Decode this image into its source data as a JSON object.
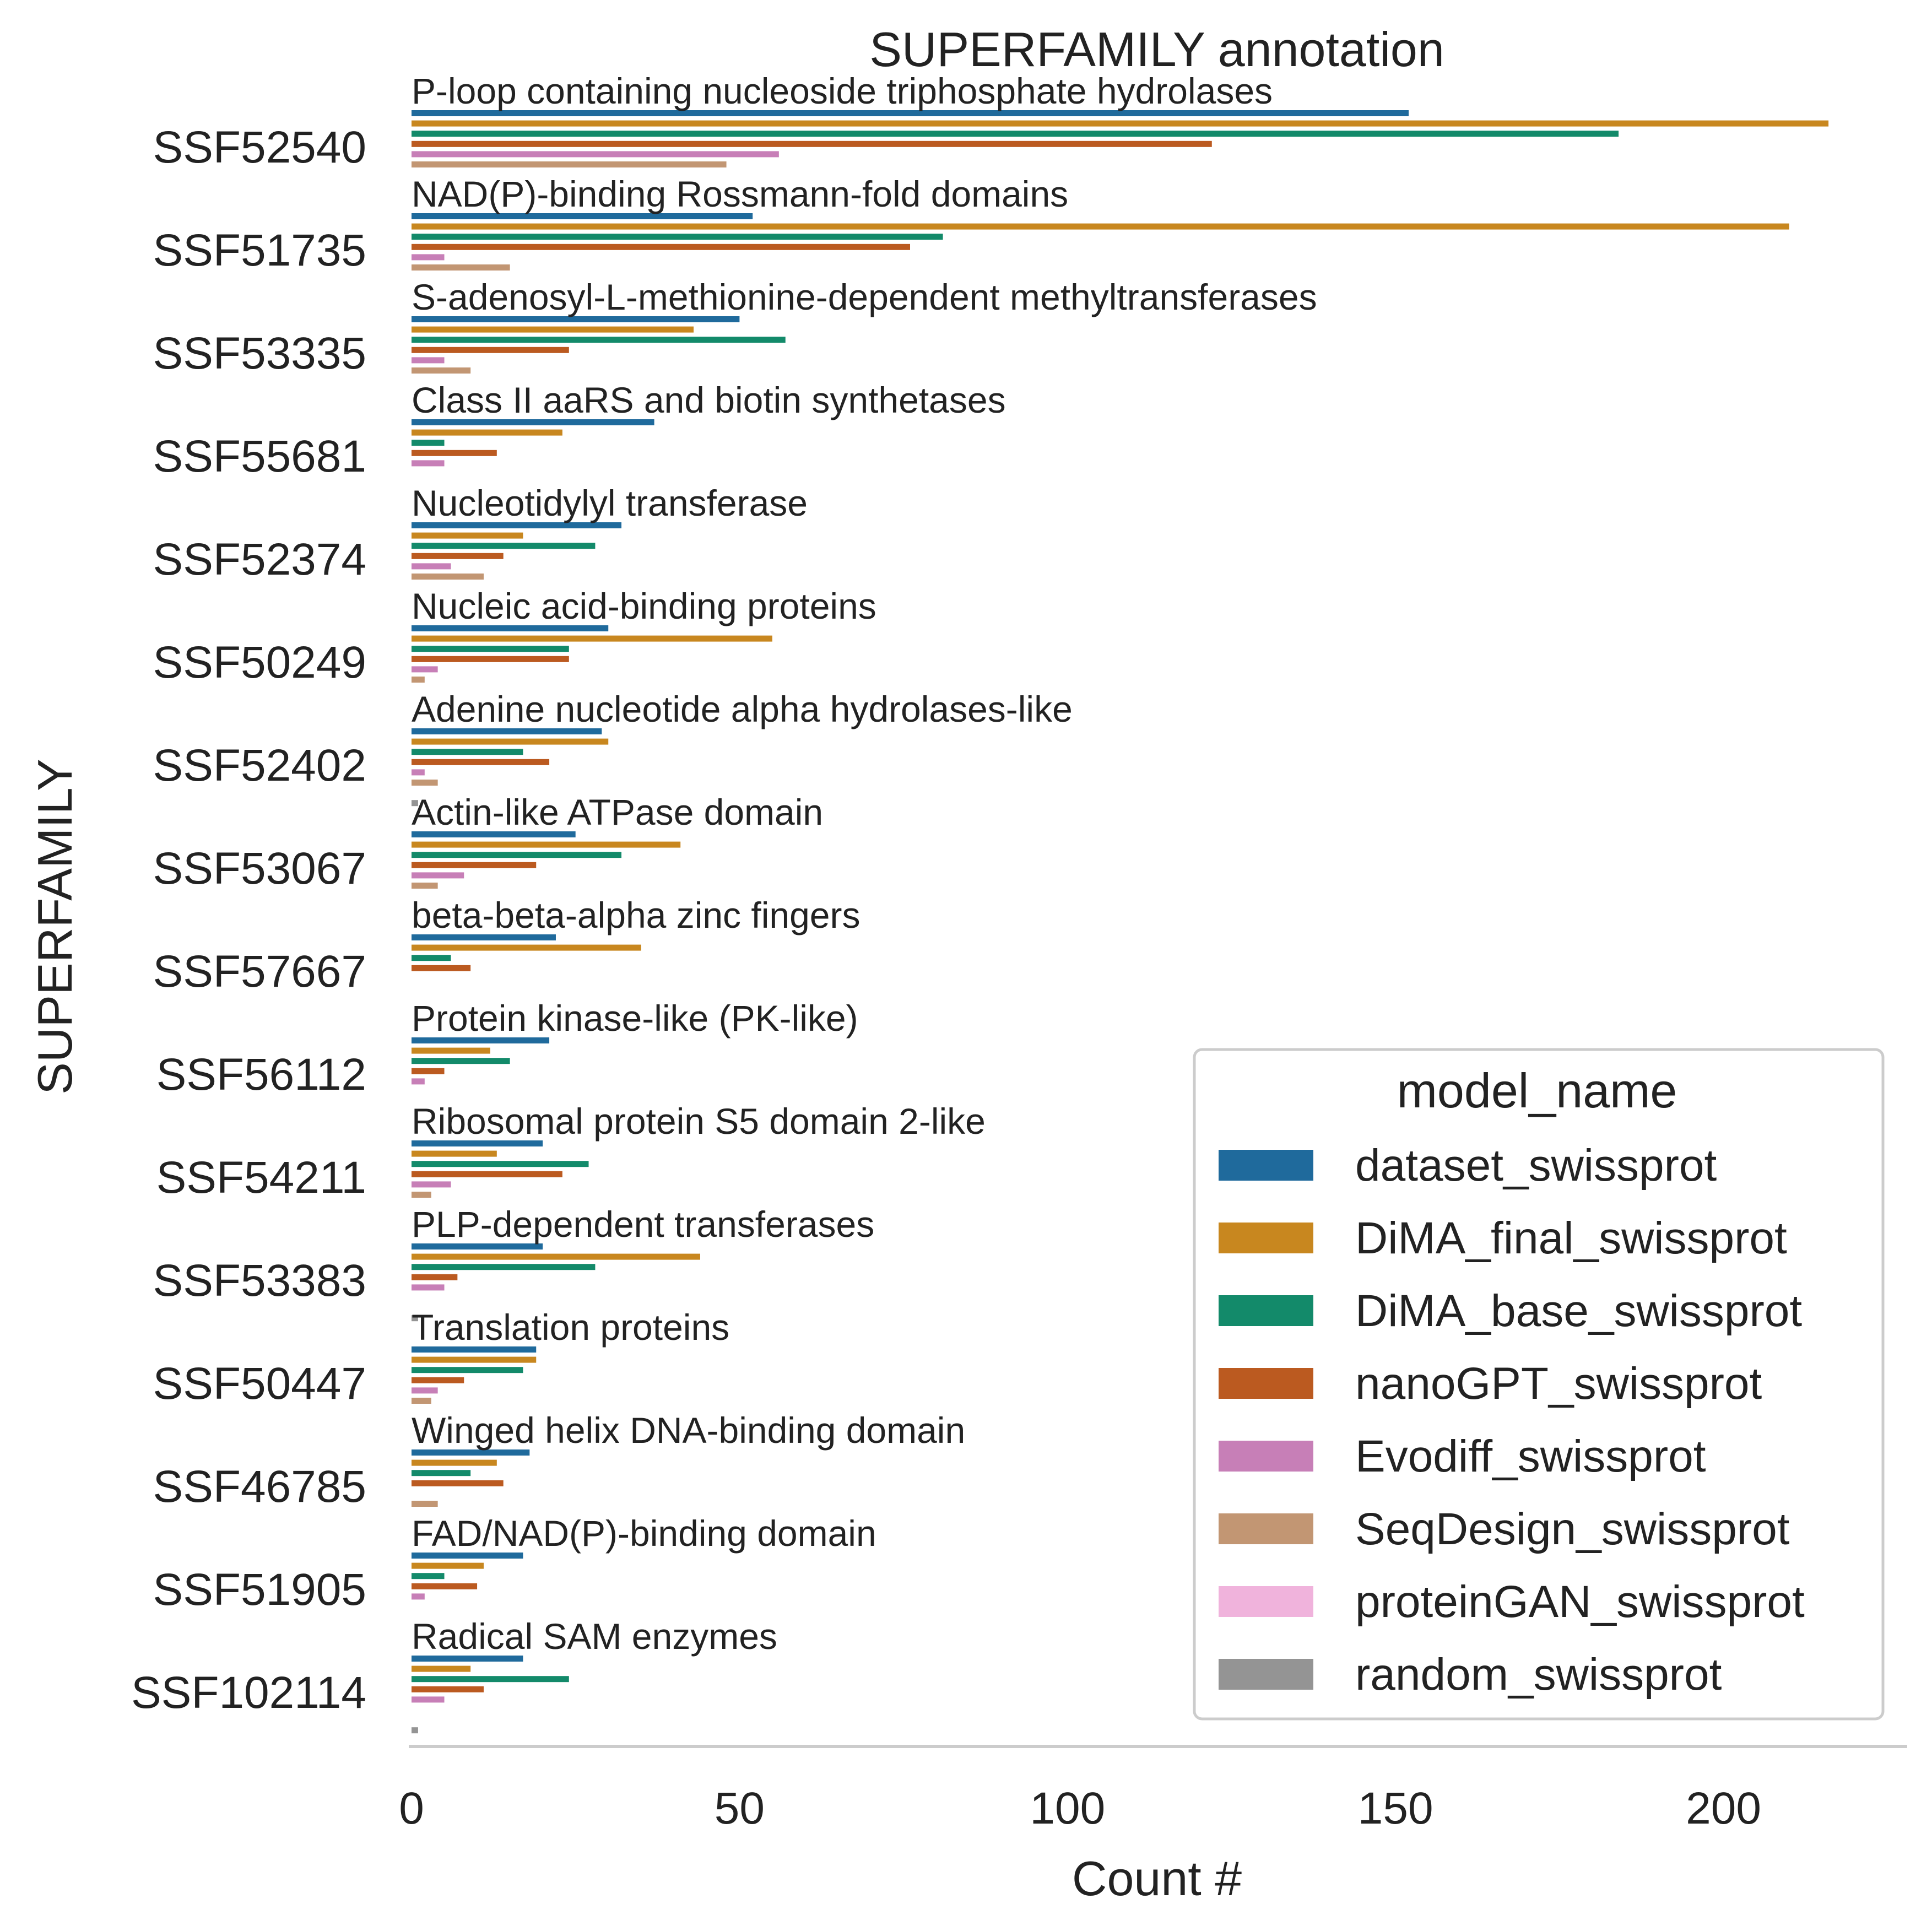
{
  "chart_data": {
    "type": "bar",
    "orientation": "horizontal",
    "title": "SUPERFAMILY annotation",
    "xlabel": "Count #",
    "ylabel": "SUPERFAMILY",
    "xlim": [
      0,
      228
    ],
    "xticks": [
      0,
      50,
      100,
      150,
      200
    ],
    "xtick_labels": [
      "0",
      "50",
      "100",
      "150",
      "200"
    ],
    "grid": false,
    "legend": {
      "title": "model_name",
      "position": "bottom-right"
    },
    "categories": [
      "SSF52540",
      "SSF51735",
      "SSF53335",
      "SSF55681",
      "SSF52374",
      "SSF50249",
      "SSF52402",
      "SSF53067",
      "SSF57667",
      "SSF56112",
      "SSF54211",
      "SSF53383",
      "SSF50447",
      "SSF46785",
      "SSF51905",
      "SSF102114"
    ],
    "annotations": [
      "P-loop containing nucleoside triphosphate hydrolases",
      "NAD(P)-binding Rossmann-fold domains",
      "S-adenosyl-L-methionine-dependent methyltransferases",
      "Class II aaRS and biotin synthetases",
      "Nucleotidylyl transferase",
      "Nucleic acid-binding proteins",
      "Adenine nucleotide alpha hydrolases-like",
      "Actin-like ATPase domain",
      "beta-beta-alpha zinc fingers",
      "Protein kinase-like (PK-like)",
      "Ribosomal protein S5 domain 2-like",
      "PLP-dependent transferases",
      "Translation proteins",
      "Winged helix DNA-binding domain",
      "FAD/NAD(P)-binding domain",
      "Radical SAM enzymes"
    ],
    "series": [
      {
        "name": "dataset_swissprot",
        "color": "#1f6a9c",
        "values": [
          152,
          52,
          50,
          37,
          32,
          30,
          29,
          25,
          22,
          21,
          20,
          20,
          19,
          18,
          17,
          17
        ]
      },
      {
        "name": "DiMA_final_swissprot",
        "color": "#c8871f",
        "values": [
          216,
          210,
          43,
          23,
          17,
          55,
          30,
          41,
          35,
          12,
          13,
          44,
          19,
          13,
          11,
          9
        ]
      },
      {
        "name": "DiMA_base_swissprot",
        "color": "#138a6a",
        "values": [
          184,
          81,
          57,
          5,
          28,
          24,
          17,
          32,
          6,
          15,
          27,
          28,
          17,
          9,
          5,
          24
        ]
      },
      {
        "name": "nanoGPT_swissprot",
        "color": "#bb5a20",
        "values": [
          122,
          76,
          24,
          13,
          14,
          24,
          21,
          19,
          9,
          5,
          23,
          7,
          8,
          14,
          10,
          11
        ]
      },
      {
        "name": "Evodiff_swissprot",
        "color": "#c77fb7",
        "values": [
          56,
          5,
          5,
          5,
          6,
          4,
          2,
          8,
          0,
          2,
          6,
          5,
          4,
          0,
          2,
          5
        ]
      },
      {
        "name": "SeqDesign_swissprot",
        "color": "#c29673",
        "values": [
          48,
          15,
          9,
          0,
          11,
          2,
          4,
          4,
          0,
          0,
          3,
          0,
          3,
          4,
          0,
          0
        ]
      },
      {
        "name": "proteinGAN_swissprot",
        "color": "#f0b3dc",
        "values": [
          0,
          0,
          0,
          0,
          0,
          0,
          0,
          0,
          0,
          0,
          0,
          0,
          0,
          0,
          0,
          0
        ]
      },
      {
        "name": "random_swissprot",
        "color": "#949494",
        "values": [
          0,
          0,
          0,
          0,
          0,
          0,
          1,
          0,
          0,
          0,
          0,
          1,
          0,
          0,
          0,
          1
        ]
      }
    ]
  }
}
